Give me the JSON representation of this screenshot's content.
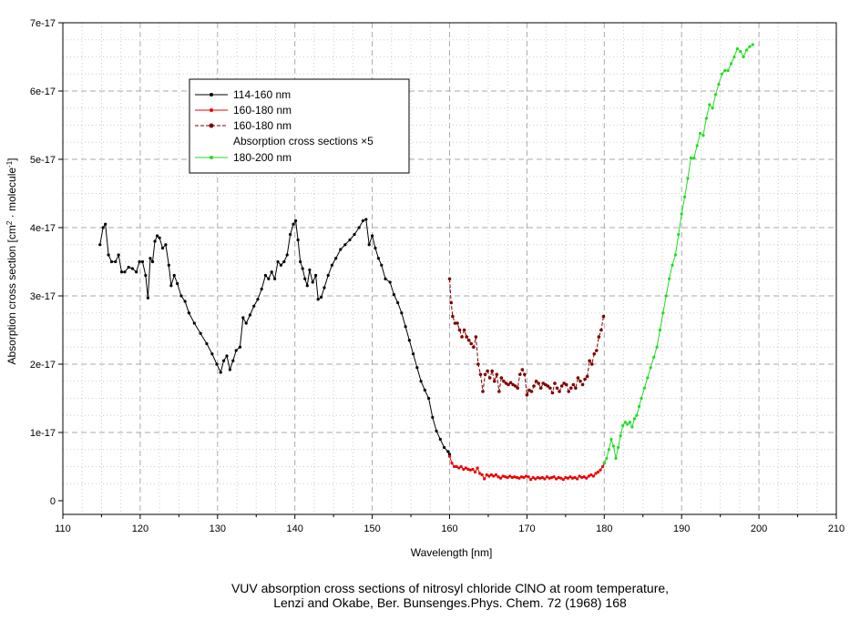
{
  "chart_data": {
    "type": "line",
    "xlabel": "Wavelength [nm]",
    "ylabel": {
      "main": "Absorption cross section [cm",
      "sup1": "2",
      "mid": " · molecule",
      "sup2": "-1",
      "end": "]"
    },
    "xlim": [
      110,
      210
    ],
    "ylim": [
      -2e-18,
      7e-17
    ],
    "xticks": [
      110,
      120,
      130,
      140,
      150,
      160,
      170,
      180,
      190,
      200,
      210
    ],
    "xtick_labels": [
      "110",
      "120",
      "130",
      "140",
      "150",
      "160",
      "170",
      "180",
      "190",
      "200",
      "210"
    ],
    "yticks": [
      0,
      1e-17,
      2e-17,
      3e-17,
      4e-17,
      5e-17,
      6e-17,
      7e-17
    ],
    "ytick_labels": [
      "0",
      "1e-17",
      "2e-17",
      "3e-17",
      "4e-17",
      "5e-17",
      "6e-17",
      "7e-17"
    ],
    "grid": true,
    "legend_position": "upper-left",
    "caption_line1": "VUV absorption cross sections of nitrosyl chloride ClNO at room temperature,",
    "caption_line2": "Lenzi and Okabe, Ber. Bunsenges.Phys. Chem. 72 (1968) 168",
    "series": [
      {
        "name": "114-160 nm",
        "color": "#000000",
        "dashed": false,
        "x": [
          114.8,
          115.2,
          115.5,
          115.9,
          116.3,
          116.8,
          117.2,
          117.6,
          118.0,
          118.5,
          119.0,
          119.5,
          119.9,
          120.3,
          120.7,
          121.0,
          121.3,
          121.6,
          121.9,
          122.2,
          122.5,
          122.9,
          123.3,
          123.7,
          124.0,
          124.4,
          124.8,
          125.3,
          125.8,
          126.3,
          127.0,
          127.8,
          128.6,
          129.3,
          129.9,
          130.4,
          130.8,
          131.2,
          131.6,
          132.0,
          132.4,
          132.9,
          133.3,
          133.7,
          134.2,
          134.7,
          135.2,
          135.7,
          136.2,
          136.6,
          137.0,
          137.4,
          137.8,
          138.2,
          138.6,
          139.0,
          139.4,
          139.8,
          140.1,
          140.4,
          140.7,
          141.0,
          141.3,
          141.6,
          141.9,
          142.3,
          142.7,
          143.0,
          143.4,
          143.8,
          144.3,
          144.8,
          145.3,
          145.9,
          146.5,
          147.1,
          147.7,
          148.3,
          148.8,
          149.2,
          149.6,
          150.0,
          150.4,
          150.8,
          151.2,
          151.7,
          152.3,
          152.8,
          153.3,
          153.8,
          154.3,
          154.8,
          155.3,
          155.8,
          156.3,
          156.8,
          157.3,
          157.8,
          158.3,
          158.8,
          159.3,
          159.8,
          160.0
        ],
        "y": [
          3.75e-17,
          4e-17,
          4.05e-17,
          3.6e-17,
          3.5e-17,
          3.5e-17,
          3.6e-17,
          3.35e-17,
          3.35e-17,
          3.42e-17,
          3.4e-17,
          3.35e-17,
          3.5e-17,
          3.5e-17,
          3.3e-17,
          2.97e-17,
          3.55e-17,
          3.5e-17,
          3.8e-17,
          3.88e-17,
          3.85e-17,
          3.7e-17,
          3.75e-17,
          3.45e-17,
          3.15e-17,
          3.3e-17,
          3.18e-17,
          3e-17,
          2.92e-17,
          2.75e-17,
          2.6e-17,
          2.45e-17,
          2.3e-17,
          2.15e-17,
          2e-17,
          1.88e-17,
          2.05e-17,
          2.12e-17,
          1.92e-17,
          2.05e-17,
          2.2e-17,
          2.25e-17,
          2.68e-17,
          2.6e-17,
          2.72e-17,
          2.85e-17,
          2.95e-17,
          3.1e-17,
          3.3e-17,
          3.25e-17,
          3.35e-17,
          3.25e-17,
          3.5e-17,
          3.45e-17,
          3.5e-17,
          3.6e-17,
          3.9e-17,
          4.05e-17,
          4.1e-17,
          3.82e-17,
          3.5e-17,
          3.4e-17,
          3.25e-17,
          3.15e-17,
          3.38e-17,
          3.2e-17,
          3.3e-17,
          2.95e-17,
          2.98e-17,
          3.12e-17,
          3.3e-17,
          3.45e-17,
          3.55e-17,
          3.68e-17,
          3.75e-17,
          3.82e-17,
          3.9e-17,
          4e-17,
          4.1e-17,
          4.12e-17,
          3.75e-17,
          3.88e-17,
          3.7e-17,
          3.55e-17,
          3.45e-17,
          3.25e-17,
          3.2e-17,
          3.02e-17,
          2.9e-17,
          2.75e-17,
          2.55e-17,
          2.35e-17,
          2.15e-17,
          1.95e-17,
          1.75e-17,
          1.62e-17,
          1.5e-17,
          1.22e-17,
          1.02e-17,
          9e-18,
          7.8e-18,
          7.2e-18,
          6.8e-18
        ]
      },
      {
        "name": "160-180 nm",
        "color": "#ee0000",
        "dashed": false,
        "x": [
          160.0,
          160.3,
          160.6,
          160.9,
          161.2,
          161.5,
          161.8,
          162.1,
          162.4,
          162.7,
          163.0,
          163.3,
          163.6,
          163.9,
          164.2,
          164.5,
          164.8,
          165.1,
          165.4,
          165.7,
          166.0,
          166.3,
          166.6,
          166.9,
          167.2,
          167.5,
          167.8,
          168.1,
          168.4,
          168.7,
          169.0,
          169.3,
          169.6,
          169.9,
          170.2,
          170.5,
          170.8,
          171.1,
          171.4,
          171.7,
          172.0,
          172.3,
          172.6,
          172.9,
          173.2,
          173.5,
          173.8,
          174.1,
          174.4,
          174.7,
          175.0,
          175.3,
          175.6,
          175.9,
          176.2,
          176.5,
          176.8,
          177.1,
          177.4,
          177.7,
          178.0,
          178.3,
          178.6,
          178.9,
          179.2,
          179.5,
          179.8,
          180.0
        ],
        "y": [
          6.5e-18,
          5.5e-18,
          5e-18,
          5e-18,
          4.8e-18,
          5e-18,
          4.6e-18,
          4.8e-18,
          4.6e-18,
          4.5e-18,
          4.6e-18,
          4.2e-18,
          4.8e-18,
          4e-18,
          3.8e-18,
          3.2e-18,
          3.8e-18,
          3.6e-18,
          3.8e-18,
          3.6e-18,
          3.8e-18,
          3.5e-18,
          3.3e-18,
          3.6e-18,
          3.5e-18,
          3.4e-18,
          3.6e-18,
          3.4e-18,
          3.5e-18,
          3.4e-18,
          3.3e-18,
          3.5e-18,
          3.4e-18,
          3.6e-18,
          3.5e-18,
          3.1e-18,
          3.4e-18,
          3.2e-18,
          3.4e-18,
          3.3e-18,
          3.4e-18,
          3.2e-18,
          3.5e-18,
          3.3e-18,
          3.4e-18,
          3.5e-18,
          3.2e-18,
          3.4e-18,
          3.3e-18,
          3.1e-18,
          3.4e-18,
          3.3e-18,
          3.5e-18,
          3.3e-18,
          3.4e-18,
          3.2e-18,
          3.6e-18,
          3.4e-18,
          3.5e-18,
          3.3e-18,
          3.6e-18,
          3.8e-18,
          3.6e-18,
          4e-18,
          4.2e-18,
          4.5e-18,
          5e-18,
          5.5e-18
        ]
      },
      {
        "name": "160-180 nm",
        "name_line2": "Absorption cross sections ×5",
        "color": "#800000",
        "dashed": true,
        "x": [
          160.0,
          160.2,
          160.4,
          160.7,
          161.0,
          161.3,
          161.6,
          161.9,
          162.2,
          162.5,
          162.8,
          163.1,
          163.4,
          163.7,
          164.0,
          164.3,
          164.6,
          164.9,
          165.2,
          165.5,
          165.8,
          166.1,
          166.4,
          166.7,
          167.0,
          167.3,
          167.6,
          167.9,
          168.2,
          168.5,
          168.8,
          169.1,
          169.4,
          169.7,
          170.0,
          170.3,
          170.6,
          170.9,
          171.2,
          171.5,
          171.8,
          172.1,
          172.4,
          172.7,
          173.0,
          173.3,
          173.6,
          173.9,
          174.2,
          174.5,
          174.8,
          175.1,
          175.4,
          175.7,
          176.0,
          176.3,
          176.6,
          176.9,
          177.2,
          177.5,
          177.8,
          178.1,
          178.4,
          178.7,
          179.0,
          179.3,
          179.6,
          179.9
        ],
        "y": [
          3.25e-17,
          2.9e-17,
          2.7e-17,
          2.6e-17,
          2.6e-17,
          2.5e-17,
          2.4e-17,
          2.5e-17,
          2.4e-17,
          2.35e-17,
          2.3e-17,
          2.25e-17,
          2.4e-17,
          2e-17,
          1.85e-17,
          1.6e-17,
          1.85e-17,
          1.9e-17,
          1.8e-17,
          1.9e-17,
          1.75e-17,
          1.85e-17,
          1.6e-17,
          1.8e-17,
          1.75e-17,
          1.72e-17,
          1.7e-17,
          1.73e-17,
          1.7e-17,
          1.68e-17,
          1.65e-17,
          1.85e-17,
          1.92e-17,
          1.85e-17,
          1.55e-17,
          1.62e-17,
          1.6e-17,
          1.68e-17,
          1.75e-17,
          1.72e-17,
          1.65e-17,
          1.72e-17,
          1.7e-17,
          1.68e-17,
          1.65e-17,
          1.58e-17,
          1.72e-17,
          1.65e-17,
          1.6e-17,
          1.68e-17,
          1.72e-17,
          1.7e-17,
          1.6e-17,
          1.65e-17,
          1.7e-17,
          1.65e-17,
          1.8e-17,
          1.75e-17,
          1.7e-17,
          1.78e-17,
          1.82e-17,
          2.05e-17,
          2e-17,
          2.15e-17,
          2.2e-17,
          2.4e-17,
          2.5e-17,
          2.7e-17
        ]
      },
      {
        "name": "180-200 nm",
        "color": "#22dd22",
        "dashed": false,
        "x": [
          180.0,
          180.3,
          180.6,
          180.9,
          181.2,
          181.5,
          181.8,
          182.1,
          182.4,
          182.7,
          183.0,
          183.3,
          183.6,
          183.9,
          184.2,
          184.5,
          184.8,
          185.2,
          185.6,
          186.0,
          186.4,
          186.8,
          187.2,
          187.6,
          188.0,
          188.4,
          188.8,
          189.2,
          189.6,
          190.0,
          190.4,
          190.8,
          191.2,
          191.6,
          192.0,
          192.4,
          192.8,
          193.2,
          193.6,
          194.0,
          194.4,
          194.8,
          195.2,
          195.6,
          196.0,
          196.4,
          196.8,
          197.2,
          197.6,
          198.0,
          198.4,
          198.8,
          199.2
        ],
        "y": [
          5.5e-18,
          6.2e-18,
          7.5e-18,
          9e-18,
          8e-18,
          6.2e-18,
          7.8e-18,
          9.5e-18,
          1.1e-17,
          1.15e-17,
          1.12e-17,
          1.15e-17,
          1.08e-17,
          1.2e-17,
          1.25e-17,
          1.38e-17,
          1.5e-17,
          1.65e-17,
          1.8e-17,
          1.95e-17,
          2.1e-17,
          2.25e-17,
          2.5e-17,
          2.75e-17,
          3e-17,
          3.25e-17,
          3.45e-17,
          3.6e-17,
          3.9e-17,
          4.2e-17,
          4.45e-17,
          4.72e-17,
          5.02e-17,
          5.02e-17,
          5.2e-17,
          5.38e-17,
          5.35e-17,
          5.6e-17,
          5.8e-17,
          5.75e-17,
          5.95e-17,
          6.1e-17,
          6.25e-17,
          6.3e-17,
          6.3e-17,
          6.4e-17,
          6.5e-17,
          6.62e-17,
          6.58e-17,
          6.5e-17,
          6.6e-17,
          6.65e-17,
          6.68e-17
        ]
      }
    ]
  }
}
